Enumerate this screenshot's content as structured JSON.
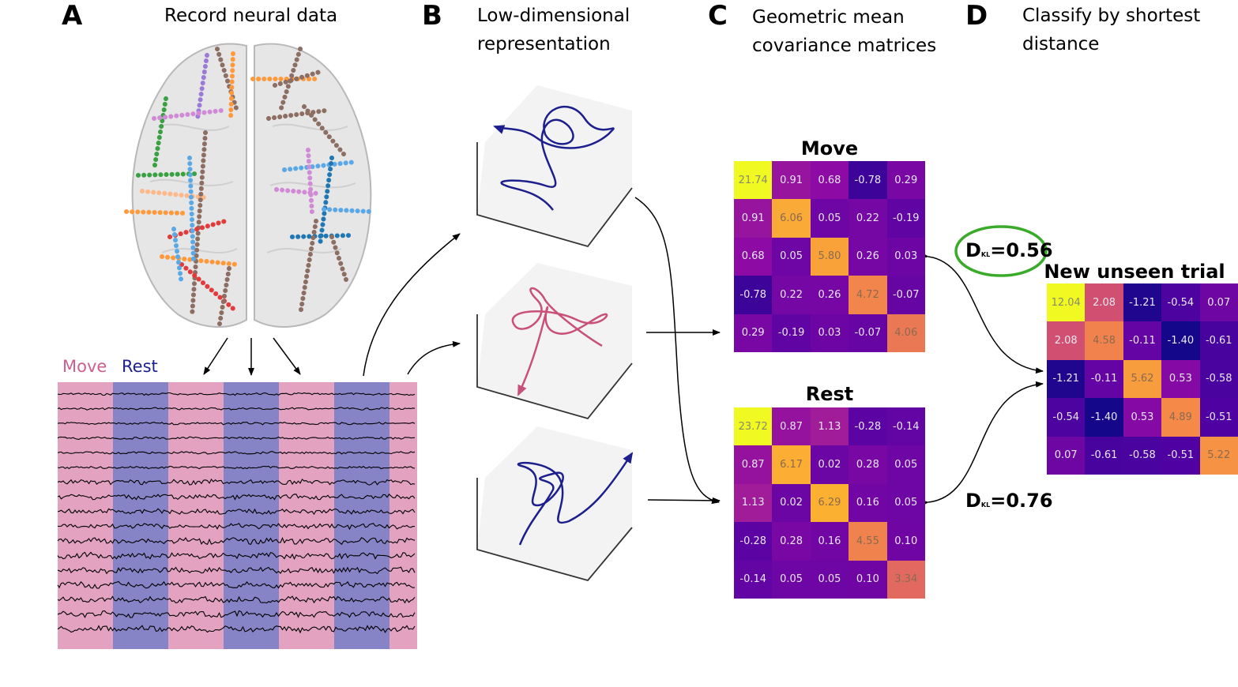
{
  "panels": {
    "a": {
      "letter": "A",
      "title": "Record neural data"
    },
    "b": {
      "letter": "B",
      "title_line1": "Low-dimensional",
      "title_line2": "representation"
    },
    "c": {
      "letter": "C",
      "title_line1": "Geometric mean",
      "title_line2": "covariance matrices"
    },
    "d": {
      "letter": "D",
      "title_line1": "Classify by shortest",
      "title_line2": "distance"
    }
  },
  "legend": {
    "move": "Move",
    "rest": "Rest",
    "move_color": "#e3a3c0",
    "rest_color": "#8783c7"
  },
  "matrices": {
    "move": {
      "title": "Move",
      "values": [
        [
          "21.74",
          "0.91",
          "0.68",
          "-0.78",
          "0.29"
        ],
        [
          "0.91",
          "6.06",
          "0.05",
          "0.22",
          "-0.19"
        ],
        [
          "0.68",
          "0.05",
          "5.80",
          "0.26",
          "0.03"
        ],
        [
          "-0.78",
          "0.22",
          "0.26",
          "4.72",
          "-0.07"
        ],
        [
          "0.29",
          "-0.19",
          "0.03",
          "-0.07",
          "4.06"
        ]
      ]
    },
    "rest": {
      "title": "Rest",
      "values": [
        [
          "23.72",
          "0.87",
          "1.13",
          "-0.28",
          "-0.14"
        ],
        [
          "0.87",
          "6.17",
          "0.02",
          "0.28",
          "0.05"
        ],
        [
          "1.13",
          "0.02",
          "6.29",
          "0.16",
          "0.05"
        ],
        [
          "-0.28",
          "0.28",
          "0.16",
          "4.55",
          "0.10"
        ],
        [
          "-0.14",
          "0.05",
          "0.05",
          "0.10",
          "3.34"
        ]
      ]
    },
    "trial": {
      "title": "New unseen trial",
      "values": [
        [
          "12.04",
          "2.08",
          "-1.21",
          "-0.54",
          "0.07"
        ],
        [
          "2.08",
          "4.58",
          "-0.11",
          "-1.40",
          "-0.61"
        ],
        [
          "-1.21",
          "-0.11",
          "5.62",
          "0.53",
          "-0.58"
        ],
        [
          "-0.54",
          "-1.40",
          "0.53",
          "4.89",
          "-0.51"
        ],
        [
          "0.07",
          "-0.61",
          "-0.58",
          "-0.51",
          "5.22"
        ]
      ]
    }
  },
  "distances": {
    "move": {
      "symbol": "D",
      "subscript": "KL",
      "value": "=0.56",
      "highlight_color": "#3aaa2a"
    },
    "rest": {
      "symbol": "D",
      "subscript": "KL",
      "value": "=0.76"
    }
  },
  "trajectory_colors": [
    "#1c1f8c",
    "#c9507a",
    "#1c1f8c"
  ]
}
